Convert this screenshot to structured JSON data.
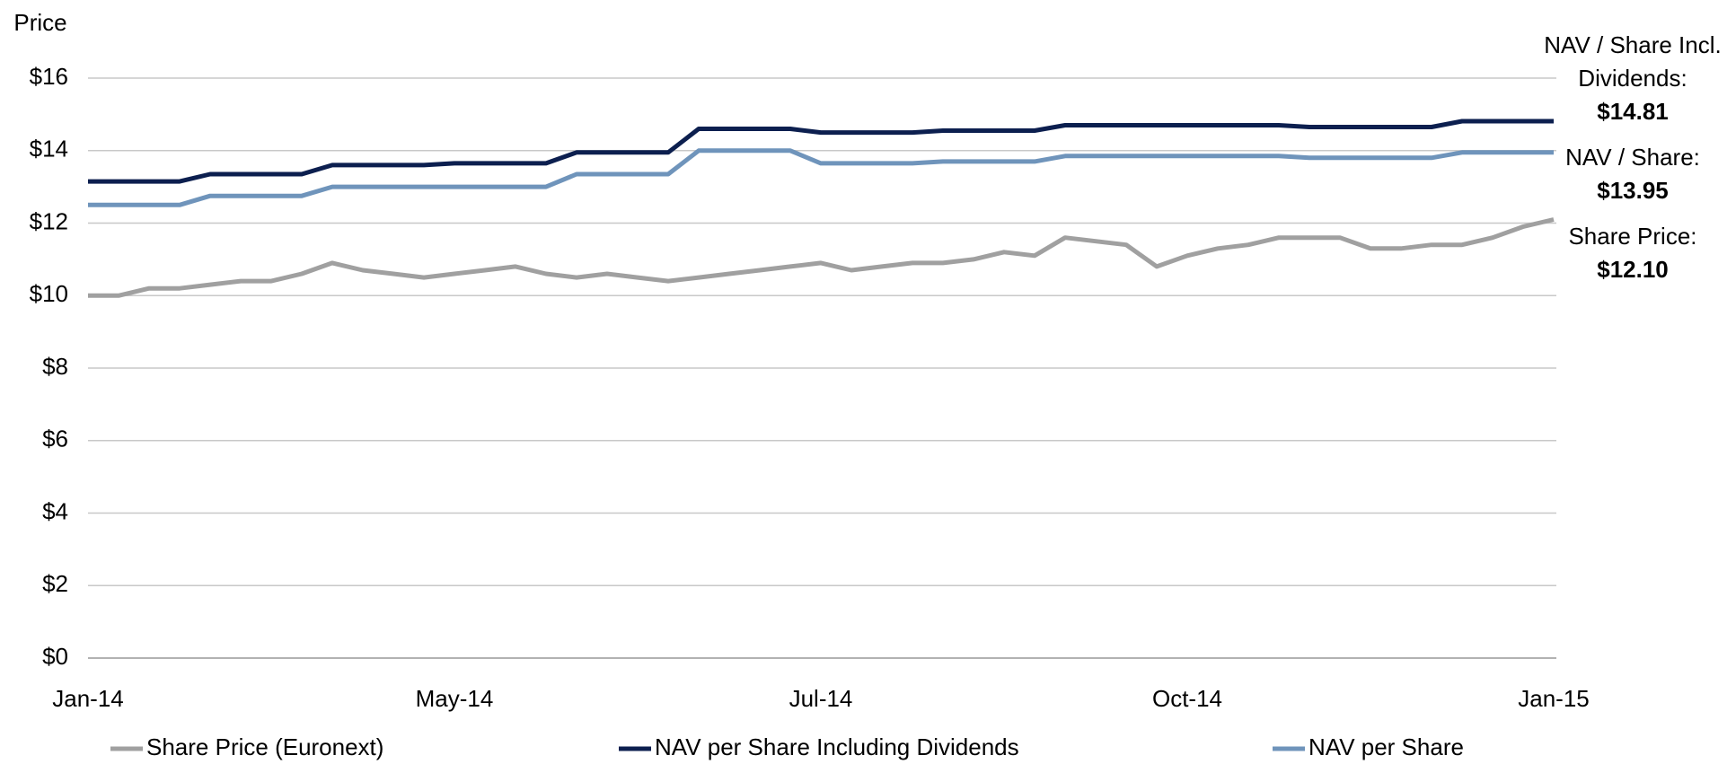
{
  "chart_data": {
    "type": "line",
    "y_label": "Price",
    "categories": [
      "Jan-14",
      null,
      null,
      null,
      null,
      null,
      null,
      null,
      null,
      null,
      null,
      null,
      "May-14",
      null,
      null,
      null,
      null,
      null,
      null,
      null,
      null,
      null,
      null,
      null,
      "Jul-14",
      null,
      null,
      null,
      null,
      null,
      null,
      null,
      null,
      null,
      null,
      null,
      "Oct-14",
      null,
      null,
      null,
      null,
      null,
      null,
      null,
      null,
      null,
      null,
      null,
      "Jan-15"
    ],
    "series": [
      {
        "name": "Share Price (Euronext)",
        "color": "#a0a0a0",
        "values": [
          10.0,
          10.0,
          10.2,
          10.2,
          10.3,
          10.4,
          10.4,
          10.6,
          10.9,
          10.7,
          10.6,
          10.5,
          10.6,
          10.7,
          10.8,
          10.6,
          10.5,
          10.6,
          10.5,
          10.4,
          10.5,
          10.6,
          10.7,
          10.8,
          10.9,
          10.7,
          10.8,
          10.9,
          10.9,
          11.0,
          11.2,
          11.1,
          11.6,
          11.5,
          11.4,
          10.8,
          11.1,
          11.3,
          11.4,
          11.6,
          11.6,
          11.6,
          11.3,
          11.3,
          11.4,
          11.4,
          11.6,
          11.9,
          12.1
        ]
      },
      {
        "name": "NAV per Share Including Dividends",
        "color": "#0c1f4f",
        "values": [
          13.15,
          13.15,
          13.15,
          13.15,
          13.35,
          13.35,
          13.35,
          13.35,
          13.6,
          13.6,
          13.6,
          13.6,
          13.65,
          13.65,
          13.65,
          13.65,
          13.95,
          13.95,
          13.95,
          13.95,
          14.6,
          14.6,
          14.6,
          14.6,
          14.5,
          14.5,
          14.5,
          14.5,
          14.55,
          14.55,
          14.55,
          14.55,
          14.7,
          14.7,
          14.7,
          14.7,
          14.7,
          14.7,
          14.7,
          14.7,
          14.65,
          14.65,
          14.65,
          14.65,
          14.65,
          14.81,
          14.81,
          14.81,
          14.81
        ]
      },
      {
        "name": "NAV per Share",
        "color": "#6f94bb",
        "values": [
          12.5,
          12.5,
          12.5,
          12.5,
          12.75,
          12.75,
          12.75,
          12.75,
          13.0,
          13.0,
          13.0,
          13.0,
          13.0,
          13.0,
          13.0,
          13.0,
          13.35,
          13.35,
          13.35,
          13.35,
          14.0,
          14.0,
          14.0,
          14.0,
          13.65,
          13.65,
          13.65,
          13.65,
          13.7,
          13.7,
          13.7,
          13.7,
          13.85,
          13.85,
          13.85,
          13.85,
          13.85,
          13.85,
          13.85,
          13.85,
          13.8,
          13.8,
          13.8,
          13.8,
          13.8,
          13.95,
          13.95,
          13.95,
          13.95
        ]
      }
    ],
    "ylim": [
      0,
      16
    ],
    "yticks": [
      {
        "value": 0,
        "label": "$0"
      },
      {
        "value": 2,
        "label": "$2"
      },
      {
        "value": 4,
        "label": "$4"
      },
      {
        "value": 6,
        "label": "$6"
      },
      {
        "value": 8,
        "label": "$8"
      },
      {
        "value": 10,
        "label": "$10"
      },
      {
        "value": 12,
        "label": "$12"
      },
      {
        "value": 14,
        "label": "$14"
      },
      {
        "value": 16,
        "label": "$16"
      }
    ],
    "grid": true,
    "legend": "bottom",
    "annotations": [
      {
        "lines": [
          "NAV / Share Incl.",
          "Dividends:"
        ],
        "value": "$14.81"
      },
      {
        "lines": [
          "NAV / Share:"
        ],
        "value": "$13.95"
      },
      {
        "lines": [
          "Share Price:"
        ],
        "value": "$12.10"
      }
    ]
  }
}
